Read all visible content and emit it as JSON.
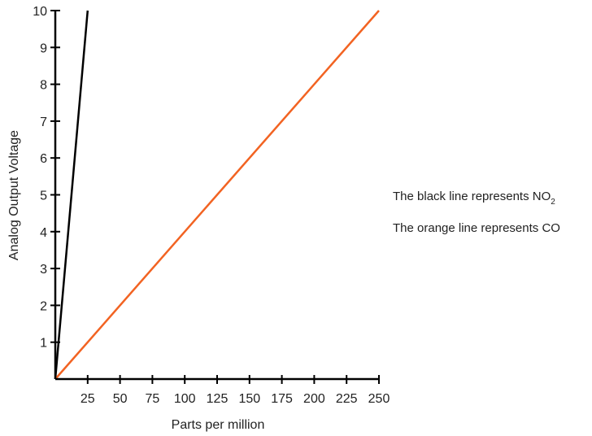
{
  "chart_data": {
    "type": "line",
    "title": "",
    "xlabel": "Parts per million",
    "ylabel": "Analog Output Voltage",
    "xlim": [
      0,
      250
    ],
    "ylim": [
      0,
      10
    ],
    "x_ticks": [
      25,
      50,
      75,
      100,
      125,
      150,
      175,
      200,
      225,
      250
    ],
    "y_ticks": [
      1,
      2,
      3,
      4,
      5,
      6,
      7,
      8,
      9,
      10
    ],
    "grid": false,
    "legend": "none",
    "series": [
      {
        "color": "#000000",
        "points": [
          [
            0,
            0
          ],
          [
            25,
            10
          ]
        ]
      },
      {
        "color": "#f26322",
        "points": [
          [
            0,
            0
          ],
          [
            250,
            10
          ]
        ]
      }
    ],
    "annotations": [
      {
        "text": "The black line represents NO",
        "subscript": "2"
      },
      {
        "text": "The orange line represents CO",
        "subscript": ""
      }
    ]
  }
}
